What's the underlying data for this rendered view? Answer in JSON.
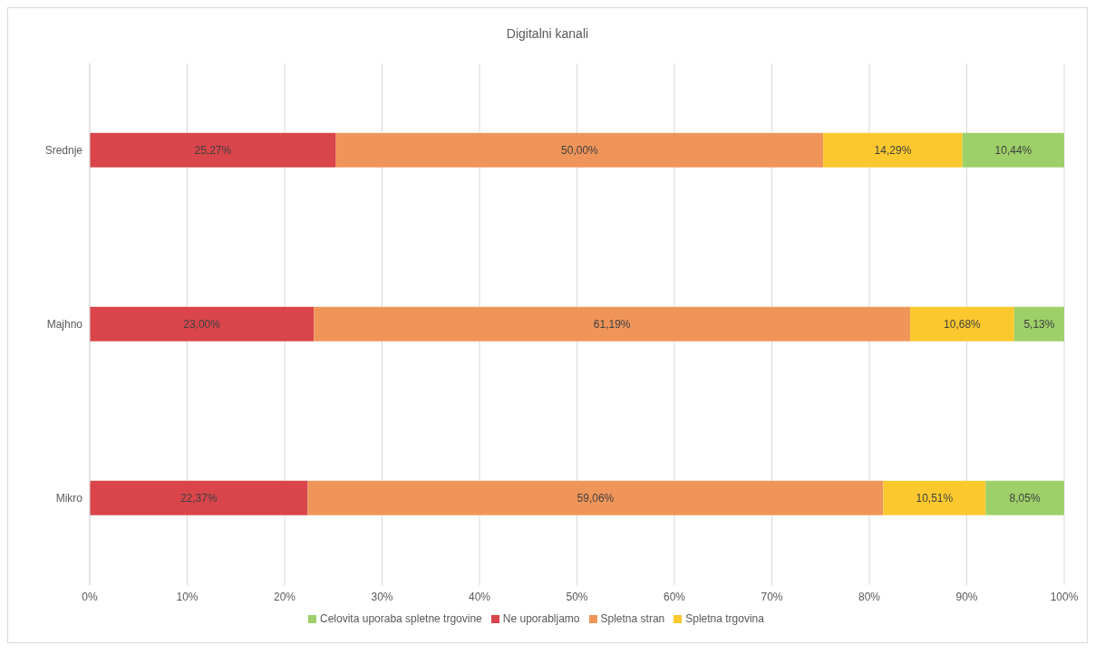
{
  "chart_data": {
    "type": "bar",
    "title": "Digitalni kanali",
    "orientation": "horizontal",
    "stacked": true,
    "categories": [
      "Srednje",
      "Majhno",
      "Mikro"
    ],
    "series": [
      {
        "name": "Ne uporabljamo",
        "color": "#d9454a",
        "values": [
          25.27,
          23.0,
          22.37
        ],
        "value_labels": [
          "25,27%",
          "23,00%",
          "22,37%"
        ]
      },
      {
        "name": "Spletna stran",
        "color": "#f0955a",
        "values": [
          50.0,
          61.19,
          59.06
        ],
        "value_labels": [
          "50,00%",
          "61,19%",
          "59,06%"
        ]
      },
      {
        "name": "Spletna trgovina",
        "color": "#fbc92e",
        "values": [
          14.29,
          10.68,
          10.51
        ],
        "value_labels": [
          "14,29%",
          "10,68%",
          "10,51%"
        ]
      },
      {
        "name": "Celovita uporaba spletne trgovine",
        "color": "#9dd068",
        "values": [
          10.44,
          5.13,
          8.05
        ],
        "value_labels": [
          "10,44%",
          "5,13%",
          "8,05%"
        ]
      }
    ],
    "xlim": [
      0,
      100
    ],
    "xticks": [
      {
        "value": 0,
        "label": "0%"
      },
      {
        "value": 10,
        "label": "10%"
      },
      {
        "value": 20,
        "label": "20%"
      },
      {
        "value": 30,
        "label": "30%"
      },
      {
        "value": 40,
        "label": "40%"
      },
      {
        "value": 50,
        "label": "50%"
      },
      {
        "value": 60,
        "label": "60%"
      },
      {
        "value": 70,
        "label": "70%"
      },
      {
        "value": 80,
        "label": "80%"
      },
      {
        "value": 90,
        "label": "90%"
      },
      {
        "value": 100,
        "label": "100%"
      }
    ],
    "grid": "x",
    "legend": "bottom"
  }
}
